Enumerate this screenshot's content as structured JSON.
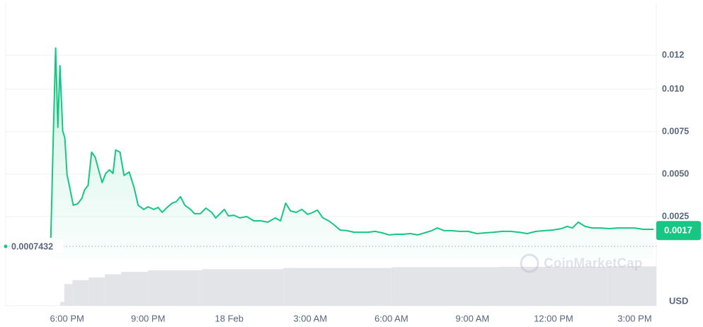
{
  "chart_data": {
    "type": "line",
    "x": [
      17.4,
      17.5,
      17.58,
      17.66,
      17.74,
      17.84,
      17.92,
      18.0,
      18.1,
      18.23,
      18.39,
      18.55,
      18.65,
      18.78,
      18.91,
      19.04,
      19.17,
      19.3,
      19.43,
      19.57,
      19.7,
      19.8,
      19.96,
      20.11,
      20.3,
      20.48,
      20.63,
      20.84,
      21.0,
      21.21,
      21.37,
      21.52,
      21.73,
      21.89,
      22.04,
      22.2,
      22.36,
      22.57,
      22.72,
      22.93,
      23.14,
      23.35,
      23.5,
      23.66,
      23.82,
      23.97,
      24.18,
      24.39,
      24.65,
      24.91,
      25.17,
      25.43,
      25.7,
      25.9,
      26.09,
      26.27,
      26.48,
      26.69,
      26.9,
      27.1,
      27.26,
      27.47,
      27.68,
      27.89,
      28.1,
      28.36,
      28.62,
      28.88,
      29.14,
      29.4,
      29.66,
      29.92,
      30.18,
      30.44,
      30.7,
      30.97,
      31.23,
      31.49,
      31.7,
      31.96,
      32.22,
      32.53,
      32.84,
      33.16,
      33.47,
      33.78,
      34.1,
      34.41,
      34.72,
      35.03,
      35.35,
      35.66,
      35.97,
      36.29,
      36.5,
      36.7,
      36.91,
      37.17,
      37.43,
      37.75,
      38.06,
      38.37,
      38.69,
      39.0,
      39.31,
      39.7
    ],
    "series": [
      {
        "color": "#16c784",
        "values": [
          0.00125,
          0.00775,
          0.01242,
          0.00775,
          0.01138,
          0.00754,
          0.00713,
          0.00496,
          0.00421,
          0.00317,
          0.00325,
          0.00358,
          0.00408,
          0.00433,
          0.00629,
          0.006,
          0.00525,
          0.0045,
          0.00504,
          0.00525,
          0.00504,
          0.00642,
          0.00629,
          0.00492,
          0.00513,
          0.00421,
          0.00317,
          0.00292,
          0.00308,
          0.00292,
          0.00304,
          0.00275,
          0.00308,
          0.00329,
          0.00338,
          0.00367,
          0.00317,
          0.00292,
          0.00267,
          0.00267,
          0.003,
          0.00275,
          0.00242,
          0.00267,
          0.00292,
          0.00254,
          0.00258,
          0.00242,
          0.0025,
          0.00225,
          0.00225,
          0.00217,
          0.00242,
          0.00225,
          0.00329,
          0.00283,
          0.00275,
          0.00292,
          0.00263,
          0.00275,
          0.00288,
          0.00242,
          0.00225,
          0.002,
          0.00171,
          0.00167,
          0.00158,
          0.00158,
          0.00158,
          0.00163,
          0.00154,
          0.00142,
          0.00146,
          0.00146,
          0.0015,
          0.00142,
          0.00154,
          0.00167,
          0.00183,
          0.00167,
          0.00167,
          0.00163,
          0.00163,
          0.0015,
          0.00154,
          0.00158,
          0.00163,
          0.00163,
          0.00158,
          0.0015,
          0.00163,
          0.00167,
          0.00171,
          0.00179,
          0.00192,
          0.00183,
          0.00217,
          0.00192,
          0.00183,
          0.00183,
          0.00179,
          0.00183,
          0.00183,
          0.00183,
          0.00175,
          0.00175
        ]
      }
    ],
    "xlim": [
      15.73,
      39.8
    ],
    "xticks": [
      {
        "value": 18,
        "label": "6:00 PM"
      },
      {
        "value": 21,
        "label": "9:00 PM"
      },
      {
        "value": 24,
        "label": "18 Feb"
      },
      {
        "value": 27,
        "label": "3:00 AM"
      },
      {
        "value": 30,
        "label": "6:00 AM"
      },
      {
        "value": 33,
        "label": "9:00 AM"
      },
      {
        "value": 36,
        "label": "12:00 PM"
      },
      {
        "value": 39,
        "label": "3:00 PM"
      }
    ],
    "ylim": [
      0,
      0.01504
    ],
    "yticks": [
      0.0025,
      {
        "value": 0.005,
        "label": "0.0050"
      },
      0.0075,
      {
        "value": 0.01,
        "label": "0.010"
      },
      0.012
    ],
    "grid": true,
    "reference_price": 0.0007432,
    "last_price": 0.0017,
    "currency": "USD",
    "watermark": "CoinMarketCap",
    "volume": {
      "color": "#e3e4e8",
      "x": [
        17.75,
        17.9,
        18.2,
        18.8,
        19.4,
        20,
        21,
        23,
        26,
        30,
        34,
        38
      ],
      "values": [
        0.1,
        0.55,
        0.65,
        0.72,
        0.8,
        0.86,
        0.9,
        0.93,
        0.96,
        0.98,
        0.99,
        1.0
      ],
      "ylim": [
        0,
        1.15
      ]
    }
  }
}
